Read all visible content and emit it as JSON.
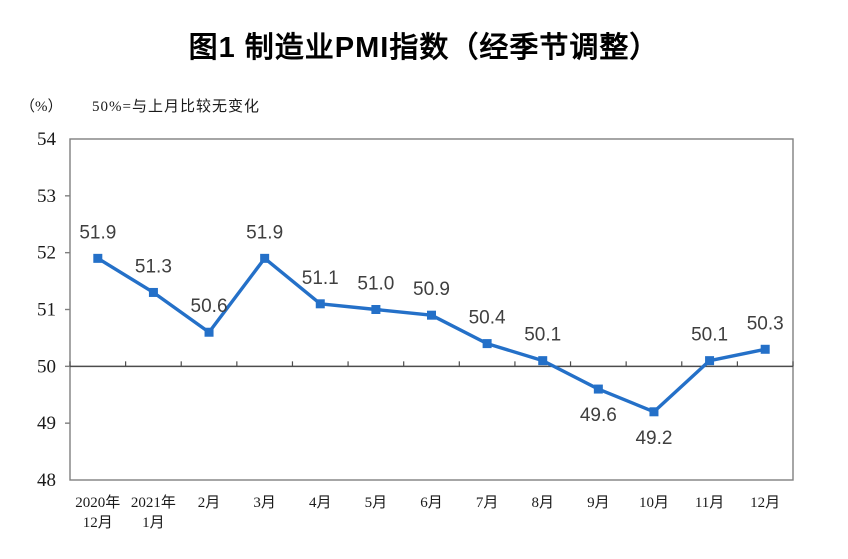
{
  "chart_data": {
    "type": "line",
    "title": "图1 制造业PMI指数（经季节调整）",
    "unit_label": "（%）",
    "reference_note": "50%=与上月比较无变化",
    "categories": [
      "2020年\n12月",
      "2021年\n1月",
      "2月",
      "3月",
      "4月",
      "5月",
      "6月",
      "7月",
      "8月",
      "9月",
      "10月",
      "11月",
      "12月"
    ],
    "values": [
      51.9,
      51.3,
      50.6,
      51.9,
      51.1,
      51.0,
      50.9,
      50.4,
      50.1,
      49.6,
      49.2,
      50.1,
      50.3
    ],
    "value_labels": [
      "51.9",
      "51.3",
      "50.6",
      "51.9",
      "51.1",
      "51.0",
      "50.9",
      "50.4",
      "50.1",
      "49.6",
      "49.2",
      "50.1",
      "50.3"
    ],
    "label_positions": [
      "above",
      "above",
      "above",
      "above",
      "above",
      "above",
      "above",
      "above",
      "above",
      "below",
      "below",
      "above",
      "above"
    ],
    "ylim": [
      48,
      54
    ],
    "ytick_step": 1,
    "yticks": [
      "48",
      "49",
      "50",
      "51",
      "52",
      "53",
      "54"
    ],
    "reference_line_value": 50,
    "grid": false,
    "legend": "none",
    "colors": {
      "line": "#2470C8",
      "marker": "#2470C8",
      "data_label": "#3f3f3f",
      "axis": "#7f7f7f",
      "reference_line": "#4d4d4d",
      "tick_label": "#1a1a1a",
      "title": "#000000"
    }
  }
}
